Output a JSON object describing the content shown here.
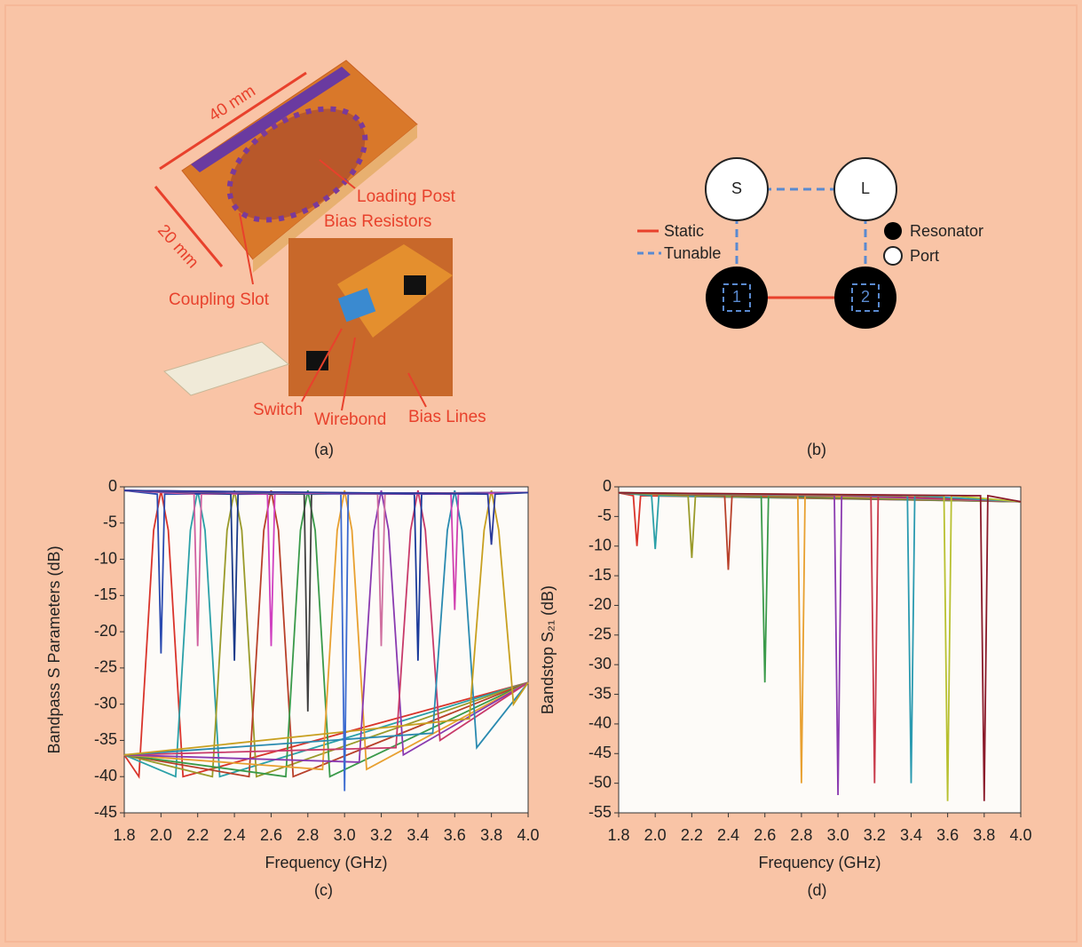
{
  "panel_a": {
    "caption": "(a)",
    "labels": {
      "length": "40 mm",
      "width": "20 mm",
      "loading_post": "Loading Post",
      "bias_resistors": "Bias Resistors",
      "coupling_slot": "Coupling Slot",
      "switch": "Switch",
      "wirebond": "Wirebond",
      "bias_lines": "Bias Lines"
    }
  },
  "panel_b": {
    "caption": "(b)",
    "nodes": [
      {
        "label": "S"
      },
      {
        "label": "L"
      },
      {
        "label": "1"
      },
      {
        "label": "2"
      }
    ],
    "legend": {
      "static": "Static",
      "tunable": "Tunable",
      "resonator": "Resonator",
      "port": "Port"
    }
  },
  "chart_data": [
    {
      "type": "line",
      "caption": "(c)",
      "x_label": "Frequency (GHz)",
      "y_label": "Bandpass S Parameters (dB)",
      "xlim": [
        1.8,
        4.0
      ],
      "xticks": [
        1.8,
        {
          "value": 2,
          "label": "2.0"
        },
        2.2,
        2.4,
        2.6,
        2.8,
        {
          "value": 3,
          "label": "3.0"
        },
        3.2,
        3.4,
        3.6,
        3.8,
        {
          "value": 4,
          "label": "4.0"
        }
      ],
      "ylim": [
        -45,
        0
      ],
      "yticks": [
        0,
        -5,
        -10,
        -15,
        -20,
        -25,
        -30,
        -35,
        -40,
        -45
      ],
      "series": [
        {
          "color": "#d9342b",
          "x": [
            1.8,
            1.88,
            1.96,
            2.0,
            2.04,
            2.12,
            4.0
          ],
          "values": [
            -37,
            -40,
            -6,
            -0.5,
            -6,
            -40,
            -27
          ]
        },
        {
          "color": "#2ba0a8",
          "x": [
            1.8,
            2.08,
            2.16,
            2.2,
            2.24,
            2.32,
            4.0
          ],
          "values": [
            -37,
            -40,
            -6,
            -0.5,
            -6,
            -40,
            -27
          ]
        },
        {
          "color": "#9a9a2a",
          "x": [
            1.8,
            2.28,
            2.36,
            2.4,
            2.44,
            2.52,
            4.0
          ],
          "values": [
            -37,
            -40,
            -6,
            -0.5,
            -6,
            -40,
            -27
          ]
        },
        {
          "color": "#b8402a",
          "x": [
            1.8,
            2.48,
            2.56,
            2.6,
            2.64,
            2.72,
            4.0
          ],
          "values": [
            -37,
            -40,
            -6,
            -0.5,
            -6,
            -40,
            -27
          ]
        },
        {
          "color": "#3a9a4a",
          "x": [
            1.8,
            2.68,
            2.76,
            2.8,
            2.84,
            2.92,
            4.0
          ],
          "values": [
            -37,
            -40,
            -6,
            -0.5,
            -6,
            -40,
            -27
          ]
        },
        {
          "color": "#e8a030",
          "x": [
            1.8,
            2.88,
            2.96,
            3.0,
            3.04,
            3.12,
            4.0
          ],
          "values": [
            -37,
            -39,
            -6,
            -0.5,
            -6,
            -39,
            -27
          ]
        },
        {
          "color": "#8a3ab0",
          "x": [
            1.8,
            3.08,
            3.16,
            3.2,
            3.24,
            3.32,
            4.0
          ],
          "values": [
            -37,
            -38,
            -6,
            -0.5,
            -6,
            -37,
            -27
          ]
        },
        {
          "color": "#c83a6a",
          "x": [
            1.8,
            3.28,
            3.36,
            3.4,
            3.44,
            3.52,
            4.0
          ],
          "values": [
            -37,
            -36,
            -6,
            -0.5,
            -6,
            -35,
            -27
          ]
        },
        {
          "color": "#2a8ab0",
          "x": [
            1.8,
            3.48,
            3.56,
            3.6,
            3.64,
            3.72,
            4.0
          ],
          "values": [
            -37,
            -34,
            -6,
            -0.5,
            -6,
            -36,
            -27
          ]
        },
        {
          "color": "#c8a020",
          "x": [
            1.8,
            3.68,
            3.76,
            3.8,
            3.84,
            3.92,
            4.0
          ],
          "values": [
            -37,
            -32,
            -6,
            -0.5,
            -6,
            -30,
            -27
          ]
        },
        {
          "color": "#2a4ab0",
          "x": [
            1.8,
            1.98,
            2.0,
            2.02,
            4.0
          ],
          "values": [
            -0.5,
            -1,
            -23,
            -1,
            -0.8
          ]
        },
        {
          "color": "#d060a0",
          "x": [
            1.8,
            2.18,
            2.2,
            2.22,
            4.0
          ],
          "values": [
            -0.5,
            -1,
            -22,
            -1,
            -0.8
          ]
        },
        {
          "color": "#1a3a8a",
          "x": [
            1.8,
            2.38,
            2.4,
            2.42,
            4.0
          ],
          "values": [
            -0.5,
            -1,
            -24,
            -1,
            -0.8
          ]
        },
        {
          "color": "#d040c0",
          "x": [
            1.8,
            2.58,
            2.6,
            2.62,
            4.0
          ],
          "values": [
            -0.5,
            -1,
            -22,
            -1,
            -0.8
          ]
        },
        {
          "color": "#404040",
          "x": [
            1.8,
            2.78,
            2.8,
            2.82,
            4.0
          ],
          "values": [
            -0.5,
            -1,
            -31,
            -1,
            -0.8
          ]
        },
        {
          "color": "#3a6ad0",
          "x": [
            1.8,
            2.98,
            3.0,
            3.02,
            4.0
          ],
          "values": [
            -0.5,
            -1,
            -42,
            -1,
            -0.8
          ]
        },
        {
          "color": "#d070a0",
          "x": [
            1.8,
            3.18,
            3.2,
            3.22,
            4.0
          ],
          "values": [
            -0.5,
            -1,
            -22,
            -1,
            -0.8
          ]
        },
        {
          "color": "#1a3a9a",
          "x": [
            1.8,
            3.38,
            3.4,
            3.42,
            4.0
          ],
          "values": [
            -0.5,
            -1,
            -24,
            -1,
            -0.8
          ]
        },
        {
          "color": "#d040b0",
          "x": [
            1.8,
            3.58,
            3.6,
            3.62,
            4.0
          ],
          "values": [
            -0.5,
            -1,
            -17,
            -1,
            -0.8
          ]
        },
        {
          "color": "#2a3a9a",
          "x": [
            1.8,
            3.78,
            3.8,
            3.82,
            4.0
          ],
          "values": [
            -0.5,
            -1,
            -8,
            -1,
            -0.8
          ]
        }
      ]
    },
    {
      "type": "line",
      "caption": "(d)",
      "x_label": "Frequency (GHz)",
      "y_label": "Bandstop S₂₁ (dB)",
      "xlim": [
        1.8,
        4.0
      ],
      "xticks": [
        1.8,
        {
          "value": 2,
          "label": "2.0"
        },
        2.2,
        2.4,
        2.6,
        2.8,
        {
          "value": 3,
          "label": "3.0"
        },
        3.2,
        3.4,
        3.6,
        3.8,
        {
          "value": 4,
          "label": "4.0"
        }
      ],
      "ylim": [
        -55,
        0
      ],
      "yticks": [
        0,
        -5,
        -10,
        -15,
        -20,
        -25,
        -30,
        -35,
        -40,
        -45,
        -50,
        -55
      ],
      "series": [
        {
          "color": "#d9342b",
          "x": [
            1.8,
            1.88,
            1.9,
            1.92,
            4.0
          ],
          "values": [
            -1,
            -1.5,
            -10,
            -1.5,
            -2.5
          ]
        },
        {
          "color": "#2ba0a8",
          "x": [
            1.8,
            1.98,
            2.0,
            2.02,
            4.0
          ],
          "values": [
            -1,
            -1.5,
            -10.5,
            -1.5,
            -2.5
          ]
        },
        {
          "color": "#9a9a2a",
          "x": [
            1.8,
            2.18,
            2.2,
            2.22,
            4.0
          ],
          "values": [
            -1,
            -1.5,
            -12,
            -1.5,
            -2.5
          ]
        },
        {
          "color": "#b8402a",
          "x": [
            1.8,
            2.38,
            2.4,
            2.42,
            4.0
          ],
          "values": [
            -1,
            -1.5,
            -14,
            -1.5,
            -2.5
          ]
        },
        {
          "color": "#3a9a4a",
          "x": [
            1.8,
            2.58,
            2.6,
            2.62,
            4.0
          ],
          "values": [
            -1,
            -1.5,
            -33,
            -1.5,
            -2.5
          ]
        },
        {
          "color": "#e8a030",
          "x": [
            1.8,
            2.78,
            2.8,
            2.82,
            4.0
          ],
          "values": [
            -1,
            -1.5,
            -50,
            -1.5,
            -2.5
          ]
        },
        {
          "color": "#8a3ab0",
          "x": [
            1.8,
            2.98,
            3.0,
            3.02,
            4.0
          ],
          "values": [
            -1,
            -1.5,
            -52,
            -1.5,
            -2.5
          ]
        },
        {
          "color": "#c83a4a",
          "x": [
            1.8,
            3.18,
            3.2,
            3.22,
            4.0
          ],
          "values": [
            -1,
            -1.5,
            -50,
            -1.5,
            -2.5
          ]
        },
        {
          "color": "#2a9ab0",
          "x": [
            1.8,
            3.38,
            3.4,
            3.42,
            4.0
          ],
          "values": [
            -1,
            -1.5,
            -50,
            -1.5,
            -2.5
          ]
        },
        {
          "color": "#b8c030",
          "x": [
            1.8,
            3.58,
            3.6,
            3.62,
            4.0
          ],
          "values": [
            -1,
            -1.5,
            -53,
            -1.5,
            -2.5
          ]
        },
        {
          "color": "#8a1a2a",
          "x": [
            1.8,
            3.78,
            3.8,
            3.82,
            4.0
          ],
          "values": [
            -1,
            -1.5,
            -53,
            -1.5,
            -2.5
          ]
        }
      ]
    }
  ]
}
